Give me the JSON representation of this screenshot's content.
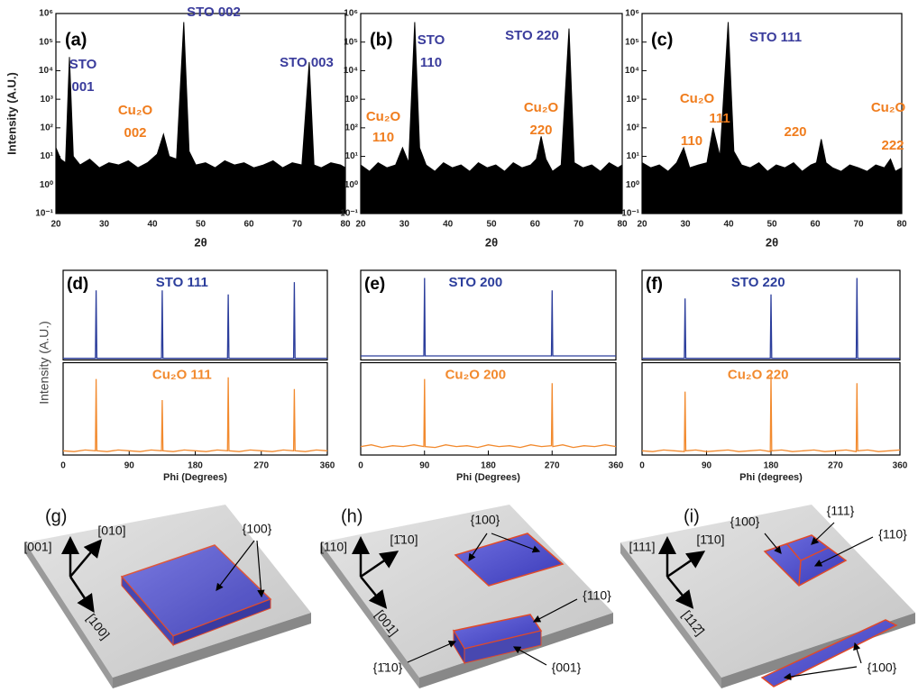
{
  "chart_data": [
    {
      "type": "line",
      "title": "(a)",
      "xlabel": "2θ",
      "ylabel": "Intensity (A.U.)",
      "log_y": true,
      "fill": true,
      "color": "#000000",
      "xlim": [
        20,
        80
      ],
      "xticks": [
        20,
        30,
        40,
        50,
        60,
        70,
        80
      ],
      "ylim": [
        0.1,
        1000000
      ],
      "yticks": [
        {
          "value": 0.1,
          "label": "10⁻¹"
        },
        {
          "value": 1,
          "label": "10⁰"
        },
        {
          "value": 10,
          "label": "10¹"
        },
        {
          "value": 100,
          "label": "10²"
        },
        {
          "value": 1000,
          "label": "10³"
        },
        {
          "value": 10000,
          "label": "10⁴"
        },
        {
          "value": 100000,
          "label": "10⁵"
        },
        {
          "value": 1000000,
          "label": "10⁶"
        }
      ],
      "x": [
        20,
        21,
        22,
        22.8,
        23.6,
        25,
        27,
        29,
        31,
        33,
        35,
        37,
        39,
        41,
        42.3,
        43.5,
        45,
        46.5,
        47.6,
        49,
        51,
        53,
        55,
        57,
        59,
        61,
        63,
        65,
        67,
        69,
        71,
        72.5,
        73.5,
        75,
        77,
        79,
        80
      ],
      "values": [
        20,
        8,
        6,
        30000,
        10,
        5,
        8,
        4,
        6,
        5,
        7,
        4,
        6,
        12,
        60,
        10,
        8,
        500000,
        15,
        5,
        6,
        4,
        7,
        5,
        6,
        4,
        5,
        7,
        4,
        6,
        5,
        20000,
        5,
        4,
        6,
        5,
        4
      ],
      "annotations": [
        {
          "text": "STO",
          "color": "#3a3c9c"
        },
        {
          "text": "001",
          "color": "#3a3c9c"
        },
        {
          "text": "Cu₂O",
          "color": "#f07d1e"
        },
        {
          "text": "002",
          "color": "#f07d1e"
        },
        {
          "text": "STO 002",
          "color": "#3a3c9c"
        },
        {
          "text": "STO 003",
          "color": "#3a3c9c"
        }
      ]
    },
    {
      "type": "line",
      "title": "(b)",
      "xlabel": "2θ",
      "log_y": true,
      "fill": true,
      "color": "#000000",
      "xlim": [
        20,
        80
      ],
      "xticks": [
        20,
        30,
        40,
        50,
        60,
        70,
        80
      ],
      "ylim": [
        0.1,
        1000000
      ],
      "yticks": [
        {
          "value": 0.1,
          "label": "10⁻¹"
        },
        {
          "value": 1,
          "label": "10⁰"
        },
        {
          "value": 10,
          "label": "10¹"
        },
        {
          "value": 100,
          "label": "10²"
        },
        {
          "value": 1000,
          "label": "10³"
        },
        {
          "value": 10000,
          "label": "10⁴"
        },
        {
          "value": 100000,
          "label": "10⁵"
        },
        {
          "value": 1000000,
          "label": "10⁶"
        }
      ],
      "x": [
        20,
        22,
        24,
        26,
        28,
        29.6,
        31,
        32.4,
        33.5,
        35,
        37,
        39,
        41,
        43,
        45,
        47,
        49,
        51,
        53,
        55,
        57,
        59,
        60.3,
        61.4,
        62.5,
        64,
        66,
        67.8,
        69,
        71,
        73,
        75,
        77,
        79,
        80
      ],
      "values": [
        5,
        3,
        6,
        4,
        5,
        20,
        6,
        500000,
        20,
        5,
        3,
        6,
        4,
        5,
        3,
        6,
        4,
        5,
        3,
        6,
        4,
        5,
        8,
        50,
        8,
        3,
        5,
        300000,
        6,
        4,
        5,
        3,
        6,
        4,
        5
      ],
      "annotations": [
        {
          "text": "Cu₂O",
          "color": "#f07d1e"
        },
        {
          "text": "110",
          "color": "#f07d1e"
        },
        {
          "text": "STO",
          "color": "#3a3c9c"
        },
        {
          "text": "110",
          "color": "#3a3c9c"
        },
        {
          "text": "STO 220",
          "color": "#3a3c9c"
        },
        {
          "text": "Cu₂O",
          "color": "#f07d1e"
        },
        {
          "text": "220",
          "color": "#f07d1e"
        }
      ]
    },
    {
      "type": "line",
      "title": "(c)",
      "xlabel": "2θ",
      "log_y": true,
      "fill": true,
      "color": "#000000",
      "xlim": [
        20,
        80
      ],
      "xticks": [
        20,
        30,
        40,
        50,
        60,
        70,
        80
      ],
      "ylim": [
        0.1,
        1000000
      ],
      "yticks": [
        {
          "value": 0.1,
          "label": "10⁻¹"
        },
        {
          "value": 1,
          "label": "10⁰"
        },
        {
          "value": 10,
          "label": "10¹"
        },
        {
          "value": 100,
          "label": "10²"
        },
        {
          "value": 1000,
          "label": "10³"
        },
        {
          "value": 10000,
          "label": "10⁴"
        },
        {
          "value": 100000,
          "label": "10⁵"
        },
        {
          "value": 1000000,
          "label": "10⁶"
        }
      ],
      "x": [
        20,
        22,
        24,
        26,
        28,
        29.6,
        31,
        33,
        35,
        36.4,
        38,
        39.9,
        41.2,
        43,
        45,
        47,
        49,
        51,
        53,
        55,
        57,
        59,
        60.3,
        61.4,
        62.5,
        64,
        66,
        68,
        70,
        72,
        74,
        76,
        77.4,
        78.5,
        80
      ],
      "values": [
        6,
        4,
        5,
        3,
        6,
        20,
        4,
        5,
        6,
        100,
        10,
        500000,
        15,
        5,
        4,
        6,
        3,
        5,
        4,
        6,
        3,
        5,
        6,
        40,
        6,
        4,
        3,
        5,
        4,
        3,
        5,
        4,
        8,
        3,
        4
      ],
      "annotations": [
        {
          "text": "Cu₂O",
          "color": "#f07d1e"
        },
        {
          "text": "111",
          "color": "#f07d1e"
        },
        {
          "text": "110",
          "color": "#f07d1e"
        },
        {
          "text": "STO 111",
          "color": "#3a3c9c"
        },
        {
          "text": "220",
          "color": "#f07d1e"
        },
        {
          "text": "Cu₂O",
          "color": "#f07d1e"
        },
        {
          "text": "222",
          "color": "#f07d1e"
        }
      ]
    },
    {
      "type": "line",
      "title": "(d)",
      "xlabel": "Phi (Degrees)",
      "ylabel": "Intensity (A.U.)",
      "subplots": true,
      "xlim": [
        0,
        360
      ],
      "xticks": [
        0,
        90,
        180,
        270,
        360
      ],
      "ylim": [
        0,
        1.05
      ],
      "x": [
        0,
        15,
        30,
        44,
        45,
        46,
        60,
        75,
        90,
        105,
        120,
        134,
        135,
        136,
        150,
        165,
        180,
        195,
        210,
        224,
        225,
        226,
        240,
        255,
        270,
        285,
        300,
        314,
        315,
        316,
        330,
        345,
        360
      ],
      "series": [
        {
          "name": "STO 111",
          "color": "#2c3e9c",
          "values": [
            0.02,
            0.02,
            0.02,
            0.02,
            0.85,
            0.02,
            0.02,
            0.02,
            0.02,
            0.02,
            0.02,
            0.02,
            0.85,
            0.02,
            0.02,
            0.02,
            0.02,
            0.02,
            0.02,
            0.02,
            0.8,
            0.02,
            0.02,
            0.02,
            0.02,
            0.02,
            0.02,
            0.02,
            0.95,
            0.02,
            0.02,
            0.02,
            0.02
          ]
        },
        {
          "name": "Cu₂O 111",
          "color": "#f28a2e",
          "values": [
            0.05,
            0.04,
            0.06,
            0.05,
            0.9,
            0.05,
            0.04,
            0.06,
            0.05,
            0.04,
            0.06,
            0.05,
            0.65,
            0.05,
            0.04,
            0.06,
            0.05,
            0.04,
            0.06,
            0.05,
            0.92,
            0.05,
            0.04,
            0.06,
            0.05,
            0.04,
            0.06,
            0.05,
            0.78,
            0.05,
            0.04,
            0.06,
            0.05
          ]
        }
      ]
    },
    {
      "type": "line",
      "title": "(e)",
      "xlabel": "Phi (Degrees)",
      "subplots": true,
      "xlim": [
        0,
        360
      ],
      "xticks": [
        0,
        90,
        180,
        270,
        360
      ],
      "ylim": [
        0,
        1.05
      ],
      "x": [
        0,
        15,
        30,
        45,
        60,
        75,
        89,
        90,
        91,
        105,
        120,
        135,
        150,
        165,
        180,
        195,
        210,
        225,
        240,
        255,
        269,
        270,
        271,
        285,
        300,
        315,
        330,
        345,
        360
      ],
      "series": [
        {
          "name": "STO 200",
          "color": "#2c3e9c",
          "values": [
            0.05,
            0.05,
            0.05,
            0.05,
            0.05,
            0.05,
            0.05,
            1.0,
            0.05,
            0.05,
            0.05,
            0.05,
            0.05,
            0.05,
            0.05,
            0.05,
            0.05,
            0.05,
            0.05,
            0.05,
            0.05,
            0.85,
            0.05,
            0.05,
            0.05,
            0.05,
            0.05,
            0.05,
            0.05
          ]
        },
        {
          "name": "Cu₂O 200",
          "color": "#f28a2e",
          "values": [
            0.1,
            0.12,
            0.09,
            0.11,
            0.1,
            0.12,
            0.1,
            0.9,
            0.1,
            0.09,
            0.12,
            0.1,
            0.11,
            0.09,
            0.12,
            0.1,
            0.11,
            0.09,
            0.12,
            0.1,
            0.11,
            0.85,
            0.1,
            0.12,
            0.09,
            0.11,
            0.1,
            0.12,
            0.1
          ]
        }
      ]
    },
    {
      "type": "line",
      "title": "(f)",
      "xlabel": "Phi (degrees)",
      "subplots": true,
      "xlim": [
        0,
        360
      ],
      "xticks": [
        0,
        90,
        180,
        270,
        360
      ],
      "ylim": [
        0,
        1.05
      ],
      "x": [
        0,
        15,
        30,
        45,
        59,
        60,
        61,
        75,
        90,
        105,
        120,
        135,
        150,
        165,
        179,
        180,
        181,
        195,
        210,
        225,
        240,
        255,
        270,
        285,
        299,
        300,
        301,
        315,
        330,
        345,
        360
      ],
      "series": [
        {
          "name": "STO 220",
          "color": "#2c3e9c",
          "values": [
            0.02,
            0.02,
            0.02,
            0.02,
            0.02,
            0.75,
            0.02,
            0.02,
            0.02,
            0.02,
            0.02,
            0.02,
            0.02,
            0.02,
            0.02,
            0.8,
            0.02,
            0.02,
            0.02,
            0.02,
            0.02,
            0.02,
            0.02,
            0.02,
            0.02,
            1.0,
            0.02,
            0.02,
            0.02,
            0.02,
            0.02
          ]
        },
        {
          "name": "Cu₂O 220",
          "color": "#f28a2e",
          "values": [
            0.05,
            0.04,
            0.06,
            0.05,
            0.04,
            0.75,
            0.05,
            0.06,
            0.04,
            0.05,
            0.06,
            0.04,
            0.05,
            0.06,
            0.04,
            0.95,
            0.05,
            0.06,
            0.04,
            0.05,
            0.06,
            0.04,
            0.05,
            0.06,
            0.04,
            0.85,
            0.05,
            0.06,
            0.04,
            0.05,
            0.06
          ]
        }
      ]
    }
  ],
  "diagrams": [
    {
      "label": "(g)",
      "axes": [
        "[001]",
        "[010]",
        "[100]"
      ],
      "facets": [
        "{100}"
      ]
    },
    {
      "label": "(h)",
      "axes": [
        "[110]",
        "[1̄10]",
        "[001]"
      ],
      "facets": [
        "{100}",
        "{110}",
        "{1̄10}",
        "{001}"
      ]
    },
    {
      "label": "(i)",
      "axes": [
        "[111]",
        "[1̄10]",
        "[112̄]"
      ],
      "facets": [
        "{100}",
        "{111}",
        "{110}",
        "{100}"
      ]
    }
  ]
}
